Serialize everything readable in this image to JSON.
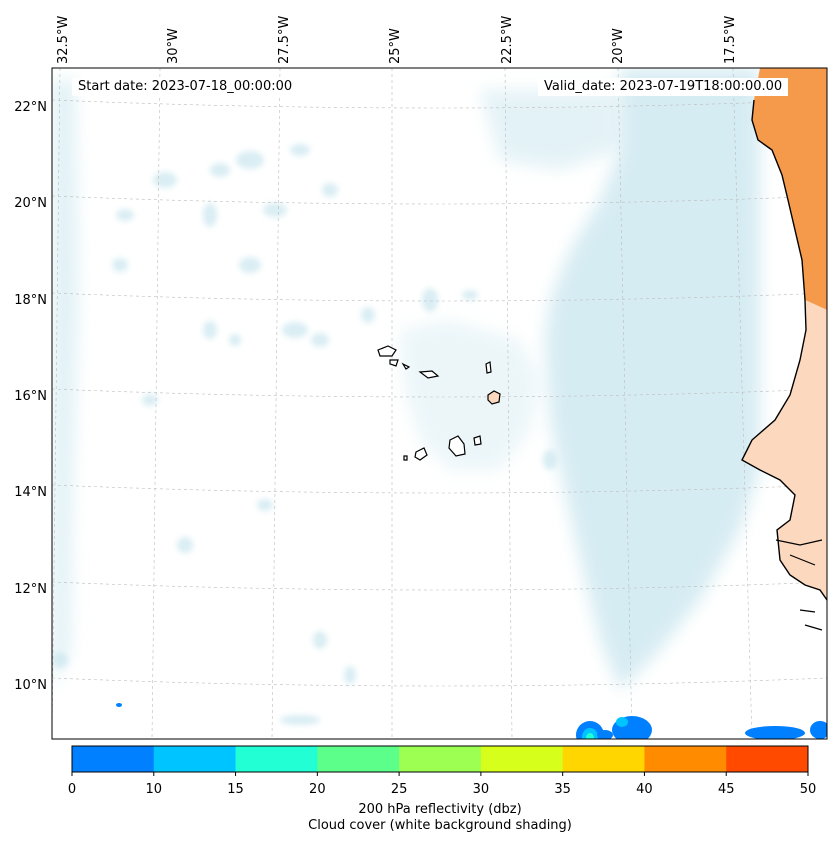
{
  "map": {
    "start_date": "Start date: 2023-07-18_00:00:00",
    "valid_date": "Valid_date: 2023-07-19T18:00:00.00",
    "lon_labels": [
      "32.5°W",
      "30°W",
      "27.5°W",
      "25°W",
      "22.5°W",
      "20°W",
      "17.5°W"
    ],
    "lat_labels": [
      "22°N",
      "20°N",
      "18°N",
      "16°N",
      "14°N",
      "12°N",
      "10°N"
    ],
    "ocean_color": "#ffffff",
    "land_color": "#f59a4b",
    "cloud_color": "#c9e6ef"
  },
  "colorbar": {
    "tick_labels": [
      "0",
      "10",
      "15",
      "20",
      "25",
      "30",
      "35",
      "40",
      "45",
      "50"
    ],
    "colors": [
      "#0080ff",
      "#00c4ff",
      "#22ffd4",
      "#5cff8a",
      "#9dff52",
      "#d7ff1c",
      "#ffd600",
      "#ff8c00",
      "#ff4a00"
    ],
    "title_line1": "200 hPa reflectivity (dbz)",
    "title_line2": "Cloud cover (white background shading)"
  }
}
